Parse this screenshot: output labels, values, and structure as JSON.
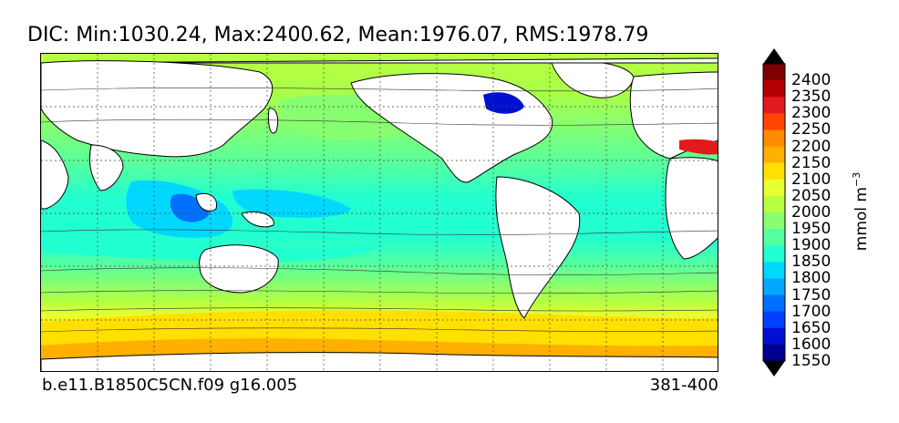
{
  "title": "DIC: Min:1030.24, Max:2400.62, Mean:1976.07, RMS:1978.79",
  "footer": {
    "case": "b.e11.B1850C5CN.f09 g16.005",
    "years": "381-400"
  },
  "colorbar": {
    "unit_main": "mmol m",
    "unit_exp": "−3",
    "ticks": [
      "2400",
      "2350",
      "2300",
      "2250",
      "2200",
      "2150",
      "2100",
      "2050",
      "2000",
      "1950",
      "1900",
      "1850",
      "1800",
      "1750",
      "1700",
      "1650",
      "1600",
      "1550"
    ],
    "colors": [
      "#7f0000",
      "#b40000",
      "#e31a1c",
      "#ff4500",
      "#ff8c00",
      "#ffb000",
      "#ffe000",
      "#e8ff30",
      "#b8ff40",
      "#88ff70",
      "#55ffa0",
      "#22ffd0",
      "#00d8ff",
      "#00a8ff",
      "#0070ff",
      "#0040ff",
      "#0010d0",
      "#000090"
    ]
  },
  "chart_data": {
    "type": "heatmap",
    "title": "DIC: Min:1030.24, Max:2400.62, Mean:1976.07, RMS:1978.79",
    "variable": "DIC",
    "stats": {
      "min": 1030.24,
      "max": 2400.62,
      "mean": 1976.07,
      "rms": 1978.79
    },
    "unit": "mmol m^-3",
    "levels": [
      1550,
      1600,
      1650,
      1700,
      1750,
      1800,
      1850,
      1900,
      1950,
      2000,
      2050,
      2100,
      2150,
      2200,
      2250,
      2300,
      2350,
      2400
    ],
    "extend": "both",
    "projection": "cylindrical world map",
    "grid": true
  }
}
